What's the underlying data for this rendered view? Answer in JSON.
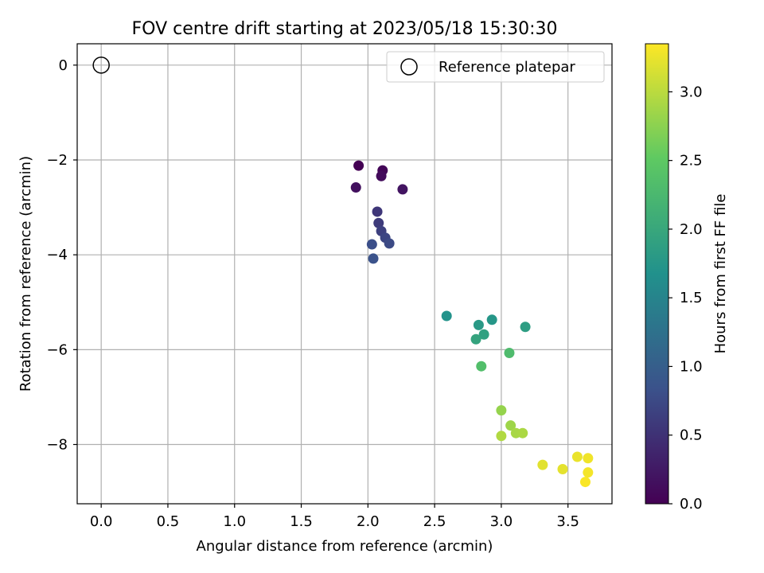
{
  "chart_data": {
    "type": "scatter",
    "title": "FOV centre drift starting at 2023/05/18 15:30:30",
    "xlabel": "Angular distance from reference (arcmin)",
    "ylabel": "Rotation from reference (arcmin)",
    "xlim": [
      -0.18,
      3.83
    ],
    "ylim": [
      -9.25,
      0.45
    ],
    "xticks": [
      0.0,
      0.5,
      1.0,
      1.5,
      2.0,
      2.5,
      3.0,
      3.5
    ],
    "xtick_labels": [
      "0.0",
      "0.5",
      "1.0",
      "1.5",
      "2.0",
      "2.5",
      "3.0",
      "3.5"
    ],
    "yticks": [
      0,
      -2,
      -4,
      -6,
      -8
    ],
    "ytick_labels": [
      "0",
      "−2",
      "−4",
      "−6",
      "−8"
    ],
    "grid": true,
    "legend": {
      "placement": "top-right",
      "entries": [
        {
          "label": "Reference platepar",
          "marker": "open-circle"
        }
      ]
    },
    "reference_point": {
      "x": 0.0,
      "y": 0.0
    },
    "colorbar": {
      "label": "Hours from first FF file",
      "range": [
        0.0,
        3.35
      ],
      "colormap": "viridis",
      "colors": [
        "#440154",
        "#3b528b",
        "#21918c",
        "#5ec962",
        "#fde725"
      ],
      "ticks": [
        0.0,
        0.5,
        1.0,
        1.5,
        2.0,
        2.5,
        3.0
      ],
      "tick_labels": [
        "0.0",
        "0.5",
        "1.0",
        "1.5",
        "2.0",
        "2.5",
        "3.0"
      ]
    },
    "points": [
      {
        "x": 1.93,
        "y": -2.12,
        "hours": 0.0
      },
      {
        "x": 2.11,
        "y": -2.22,
        "hours": 0.05
      },
      {
        "x": 2.1,
        "y": -2.34,
        "hours": 0.1
      },
      {
        "x": 1.91,
        "y": -2.58,
        "hours": 0.15
      },
      {
        "x": 2.26,
        "y": -2.62,
        "hours": 0.2
      },
      {
        "x": 2.07,
        "y": -3.09,
        "hours": 0.55
      },
      {
        "x": 2.08,
        "y": -3.33,
        "hours": 0.6
      },
      {
        "x": 2.1,
        "y": -3.5,
        "hours": 0.65
      },
      {
        "x": 2.13,
        "y": -3.64,
        "hours": 0.7
      },
      {
        "x": 2.16,
        "y": -3.76,
        "hours": 0.75
      },
      {
        "x": 2.03,
        "y": -3.78,
        "hours": 0.8
      },
      {
        "x": 2.04,
        "y": -4.08,
        "hours": 0.85
      },
      {
        "x": 2.59,
        "y": -5.29,
        "hours": 1.7
      },
      {
        "x": 2.93,
        "y": -5.37,
        "hours": 1.75
      },
      {
        "x": 2.83,
        "y": -5.48,
        "hours": 1.8
      },
      {
        "x": 3.18,
        "y": -5.52,
        "hours": 1.85
      },
      {
        "x": 2.87,
        "y": -5.68,
        "hours": 1.9
      },
      {
        "x": 2.81,
        "y": -5.78,
        "hours": 1.95
      },
      {
        "x": 3.06,
        "y": -6.07,
        "hours": 2.3
      },
      {
        "x": 2.85,
        "y": -6.35,
        "hours": 2.35
      },
      {
        "x": 3.0,
        "y": -7.28,
        "hours": 2.8
      },
      {
        "x": 3.07,
        "y": -7.6,
        "hours": 2.85
      },
      {
        "x": 3.11,
        "y": -7.76,
        "hours": 2.9
      },
      {
        "x": 3.16,
        "y": -7.76,
        "hours": 2.92
      },
      {
        "x": 3.0,
        "y": -7.82,
        "hours": 2.95
      },
      {
        "x": 3.31,
        "y": -8.43,
        "hours": 3.2
      },
      {
        "x": 3.46,
        "y": -8.52,
        "hours": 3.22
      },
      {
        "x": 3.57,
        "y": -8.26,
        "hours": 3.25
      },
      {
        "x": 3.65,
        "y": -8.29,
        "hours": 3.28
      },
      {
        "x": 3.65,
        "y": -8.59,
        "hours": 3.3
      },
      {
        "x": 3.63,
        "y": -8.79,
        "hours": 3.33
      }
    ]
  }
}
